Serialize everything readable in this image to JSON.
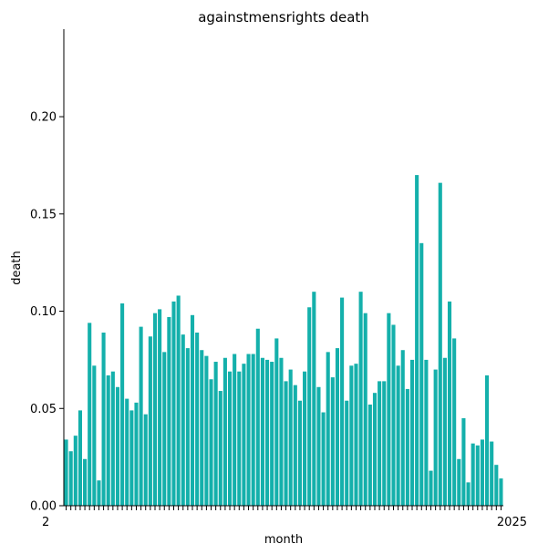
{
  "chart_data": {
    "type": "bar",
    "title": "againstmensrights death",
    "xlabel": "month",
    "ylabel": "death",
    "ylim": [
      0,
      0.245
    ],
    "yticks": [
      0.0,
      0.05,
      0.1,
      0.15,
      0.2
    ],
    "ytick_labels": [
      "0.00",
      "0.05",
      "0.10",
      "0.15",
      "0.20"
    ],
    "x_tick_label_first": "2",
    "x_tick_label_last": "2025",
    "bar_color": "#14b0ab",
    "grid": false,
    "values": [
      0.034,
      0.028,
      0.036,
      0.049,
      0.024,
      0.094,
      0.072,
      0.013,
      0.089,
      0.067,
      0.069,
      0.061,
      0.104,
      0.055,
      0.049,
      0.053,
      0.092,
      0.047,
      0.087,
      0.099,
      0.101,
      0.079,
      0.097,
      0.105,
      0.108,
      0.088,
      0.081,
      0.098,
      0.089,
      0.08,
      0.077,
      0.065,
      0.074,
      0.059,
      0.076,
      0.069,
      0.078,
      0.069,
      0.073,
      0.078,
      0.078,
      0.091,
      0.076,
      0.075,
      0.074,
      0.086,
      0.076,
      0.064,
      0.07,
      0.062,
      0.054,
      0.069,
      0.102,
      0.11,
      0.061,
      0.048,
      0.079,
      0.066,
      0.081,
      0.107,
      0.054,
      0.072,
      0.073,
      0.11,
      0.099,
      0.052,
      0.058,
      0.064,
      0.064,
      0.099,
      0.093,
      0.072,
      0.08,
      0.06,
      0.075,
      0.17,
      0.135,
      0.075,
      0.018,
      0.07,
      0.166,
      0.076,
      0.105,
      0.086,
      0.024,
      0.045,
      0.012,
      0.032,
      0.031,
      0.034,
      0.067,
      0.033,
      0.021,
      0.014
    ]
  }
}
